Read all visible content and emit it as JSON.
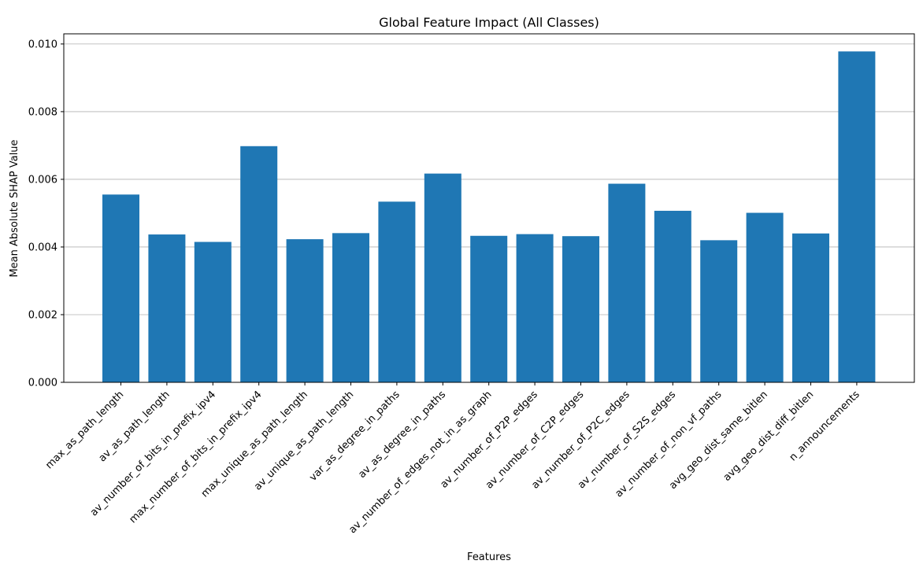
{
  "chart_data": {
    "type": "bar",
    "title": "Global Feature Impact (All Classes)",
    "xlabel": "Features",
    "ylabel": "Mean Absolute SHAP Value",
    "ylim": [
      0,
      0.0103
    ],
    "yticks": [
      "0.000",
      "0.002",
      "0.004",
      "0.006",
      "0.008",
      "0.010"
    ],
    "grid": "horizontal",
    "bar_color": "#1f77b4",
    "categories": [
      "max_as_path_length",
      "av_as_path_length",
      "av_number_of_bits_in_prefix_ipv4",
      "max_number_of_bits_in_prefix_ipv4",
      "max_unique_as_path_length",
      "av_unique_as_path_length",
      "var_as_degree_in_paths",
      "av_as_degree_in_paths",
      "av_number_of_edges_not_in_as_graph",
      "av_number_of_P2P_edges",
      "av_number_of_C2P_edges",
      "av_number_of_P2C_edges",
      "av_number_of_S2S_edges",
      "av_number_of_non_vf_paths",
      "avg_geo_dist_same_bitlen",
      "avg_geo_dist_diff_bitlen",
      "n_announcements"
    ],
    "values": [
      0.00555,
      0.00437,
      0.00415,
      0.00698,
      0.00423,
      0.00441,
      0.00534,
      0.00617,
      0.00433,
      0.00438,
      0.00432,
      0.00587,
      0.00507,
      0.0042,
      0.00501,
      0.0044,
      0.00978
    ]
  }
}
